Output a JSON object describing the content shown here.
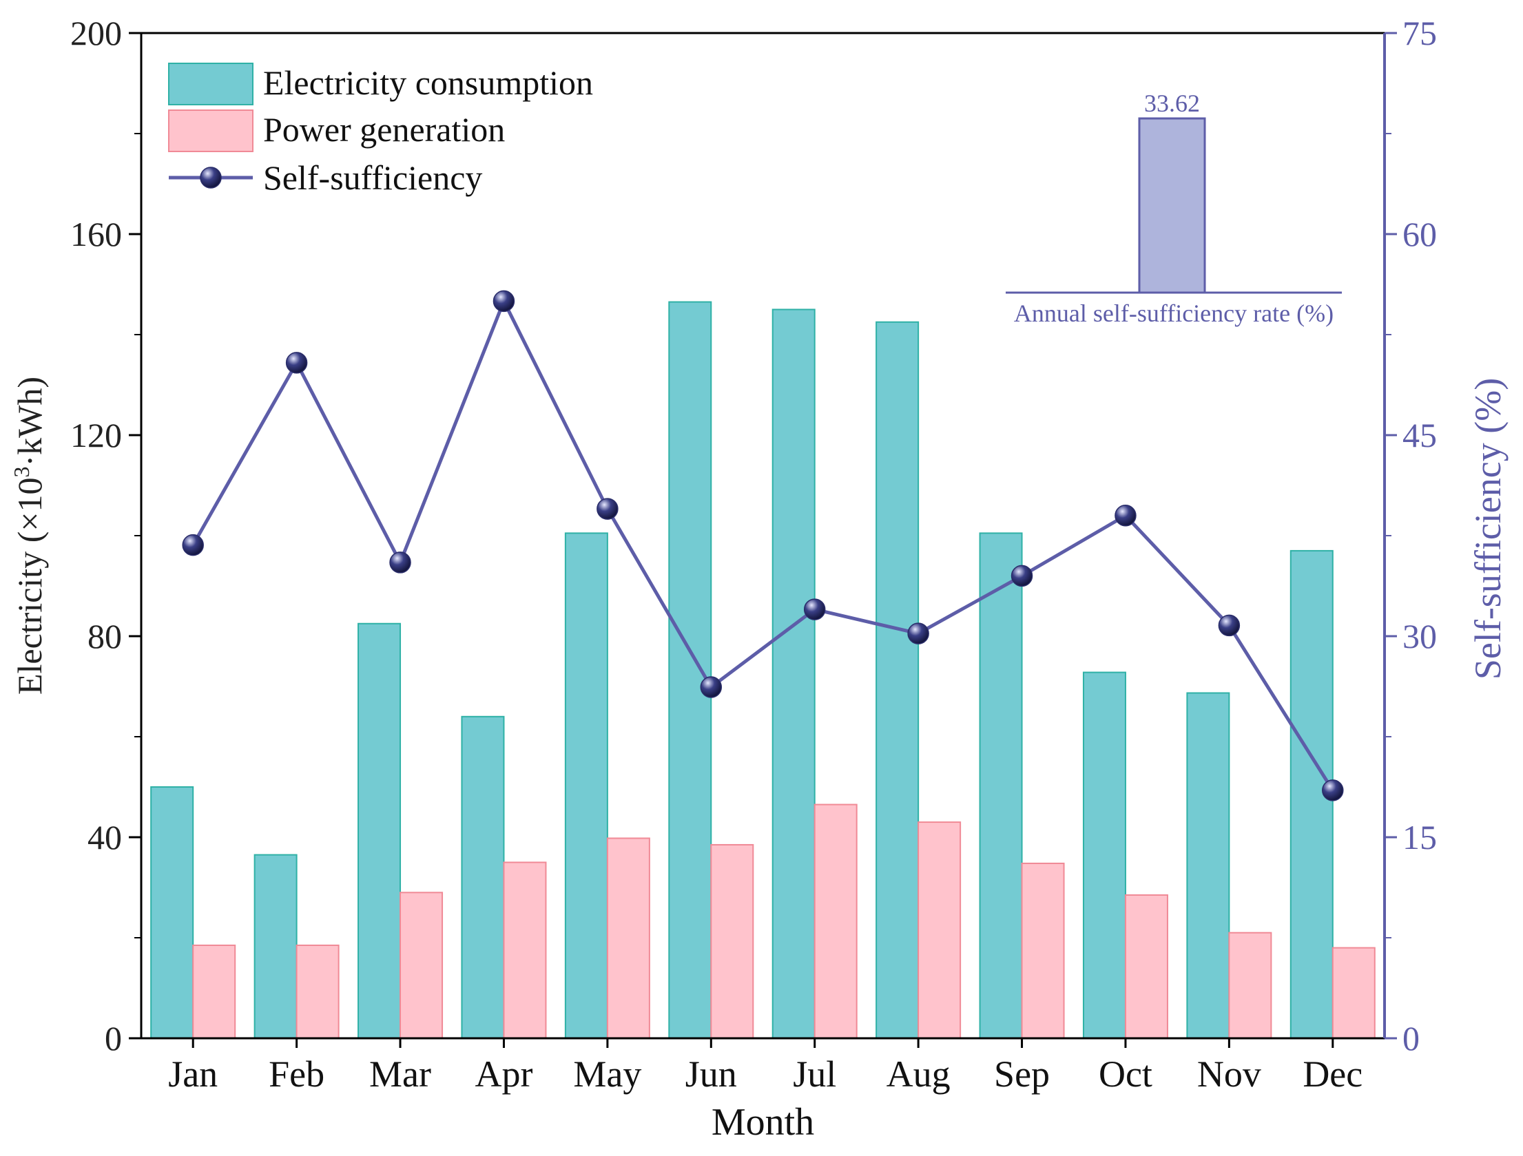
{
  "chart_data": {
    "type": "bar",
    "categories": [
      "Jan",
      "Feb",
      "Mar",
      "Apr",
      "May",
      "Jun",
      "Jul",
      "Aug",
      "Sep",
      "Oct",
      "Nov",
      "Dec"
    ],
    "xlabel": "Month",
    "ylabel_main": "Electricity (×10",
    "ylabel_sup": "3",
    "ylabel_tail": "·kWh)",
    "y2label": "Self-sufficiency (%)",
    "ylim": [
      0,
      200
    ],
    "yticks": [
      0,
      40,
      80,
      120,
      160,
      200
    ],
    "y2lim": [
      0,
      75
    ],
    "y2ticks": [
      0,
      15,
      30,
      45,
      60,
      75
    ],
    "legend_position": "top-left",
    "grid": false,
    "series": [
      {
        "name": "Electricity consumption",
        "type": "bar",
        "axis": "left",
        "color": "#74CBD2",
        "stroke": "#2FB1A6",
        "values": [
          50,
          36.5,
          82.5,
          64,
          100.5,
          146.5,
          145,
          142.5,
          100.5,
          72.8,
          68.7,
          97
        ]
      },
      {
        "name": "Power generation",
        "type": "bar",
        "axis": "left",
        "color": "#FFC3CC",
        "stroke": "#F08A96",
        "values": [
          18.5,
          18.5,
          29,
          35,
          39.8,
          38.5,
          46.5,
          43,
          34.8,
          28.5,
          21,
          18
        ]
      },
      {
        "name": "Self-sufficiency",
        "type": "line",
        "axis": "right",
        "color": "#5D5DA8",
        "values": [
          36.8,
          50.4,
          35.5,
          55,
          39.5,
          26.2,
          32,
          30.2,
          34.5,
          39,
          30.8,
          18.5
        ]
      }
    ],
    "inset": {
      "label": "Annual self-sufficiency rate (%)",
      "value": 33.62,
      "value_label": "33.62",
      "color": "#AEB4DC",
      "stroke": "#5D5DA8"
    }
  }
}
